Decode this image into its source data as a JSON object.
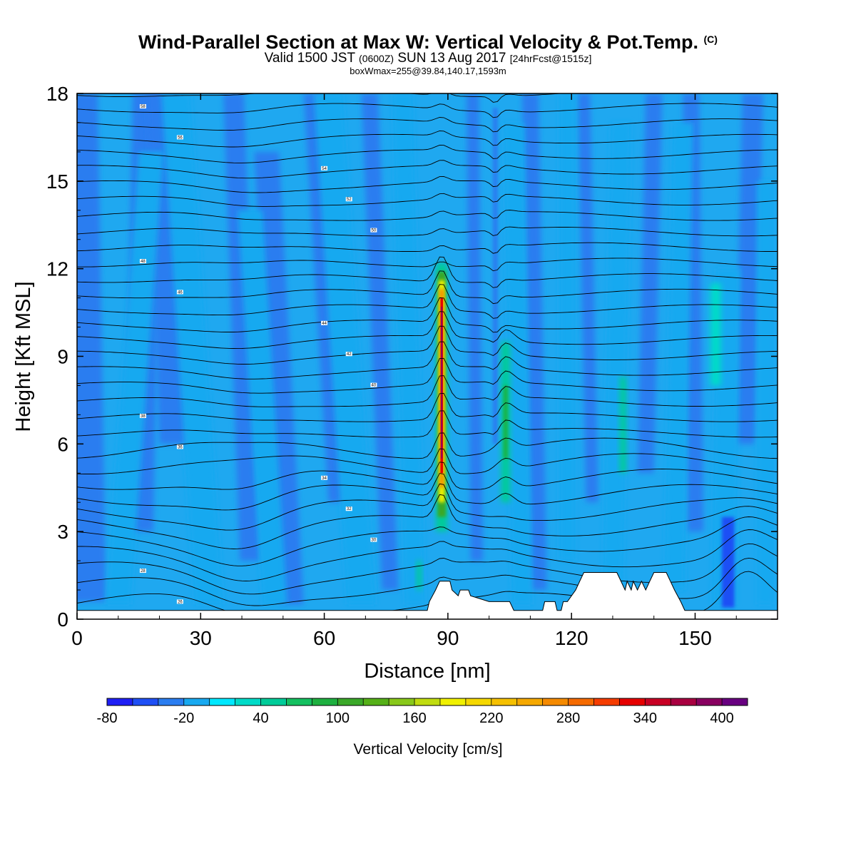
{
  "title": {
    "main": "Wind-Parallel Section at Max W: Vertical Velocity & Pot.Temp.",
    "copyright": "(C)",
    "valid_prefix": "Valid 1500 JST",
    "valid_utc": "(0600Z)",
    "valid_date": "SUN 13 Aug 2017",
    "forecast": "[24hrFcst@1515z]",
    "box_info": "boxWmax=255@39.84,140.17,1593m"
  },
  "chart_data": {
    "type": "heatmap",
    "xlabel": "Distance [nm]",
    "ylabel": "Height [Kft MSL]",
    "xlim": [
      0,
      170
    ],
    "ylim": [
      0,
      18
    ],
    "xticks": [
      0,
      30,
      60,
      90,
      120,
      150
    ],
    "yticks": [
      0,
      3,
      6,
      9,
      12,
      15,
      18
    ],
    "colorbar": {
      "title": "Vertical Velocity [cm/s]",
      "min": -80,
      "max": 420,
      "step": 20,
      "tick_values": [
        -80,
        -20,
        40,
        100,
        160,
        220,
        280,
        340,
        400
      ],
      "tick_labels": [
        "-80",
        "-20",
        "40",
        "100",
        "160",
        "220",
        "280",
        "340",
        "400"
      ],
      "colors": [
        "#1f1ff5",
        "#1f4ff5",
        "#2a7df0",
        "#18a9f0",
        "#00e8ff",
        "#00dbc8",
        "#00cc99",
        "#14c060",
        "#1eb040",
        "#3aa828",
        "#55b018",
        "#88c81a",
        "#c0dc10",
        "#f0f000",
        "#f5d800",
        "#f5c000",
        "#f5a800",
        "#f58a00",
        "#f56a00",
        "#f53c00",
        "#e60000",
        "#c80024",
        "#a80040",
        "#880060",
        "#680080"
      ]
    },
    "features": {
      "strong_updraft": {
        "x": 88.5,
        "y_bottom": 3.0,
        "y_top": 12.2,
        "peak_cms": 390
      },
      "secondary_updraft": {
        "x": 104,
        "y_bottom": 4.0,
        "y_top": 9.5,
        "peak_cms": 80
      },
      "downdraft_column": {
        "x": 101.5,
        "y_bottom": 6.0,
        "y_top": 17.5,
        "min_cms": -40
      },
      "terrain_kft": [
        [
          0,
          0.3
        ],
        [
          85,
          0.3
        ],
        [
          85.5,
          0.6
        ],
        [
          87,
          1.0
        ],
        [
          88,
          1.3
        ],
        [
          90.5,
          1.3
        ],
        [
          91,
          1.0
        ],
        [
          92.5,
          0.8
        ],
        [
          93,
          1.0
        ],
        [
          95,
          1.0
        ],
        [
          95.5,
          0.8
        ],
        [
          100,
          0.6
        ],
        [
          105,
          0.6
        ],
        [
          106,
          0.3
        ],
        [
          113,
          0.3
        ],
        [
          113.5,
          0.6
        ],
        [
          116,
          0.6
        ],
        [
          116.5,
          0.3
        ],
        [
          117.5,
          0.3
        ],
        [
          118,
          0.6
        ],
        [
          119,
          0.6
        ],
        [
          120,
          0.8
        ],
        [
          121,
          1.0
        ],
        [
          122,
          1.3
        ],
        [
          123,
          1.6
        ],
        [
          131,
          1.6
        ],
        [
          132,
          1.3
        ],
        [
          133,
          1.0
        ],
        [
          133.5,
          1.3
        ],
        [
          134.5,
          1.0
        ],
        [
          135,
          1.3
        ],
        [
          136,
          1.0
        ],
        [
          137,
          1.3
        ],
        [
          138,
          1.0
        ],
        [
          139,
          1.3
        ],
        [
          140,
          1.6
        ],
        [
          143,
          1.6
        ],
        [
          144,
          1.3
        ],
        [
          145,
          1.0
        ],
        [
          146.5,
          0.6
        ],
        [
          147.5,
          0.3
        ],
        [
          170,
          0.3
        ]
      ]
    },
    "isentropes": {
      "theta_values": [
        26,
        28,
        30,
        32,
        34,
        36,
        38,
        40,
        42,
        44,
        46,
        48,
        50,
        52,
        54,
        56,
        58,
        60
      ]
    }
  }
}
